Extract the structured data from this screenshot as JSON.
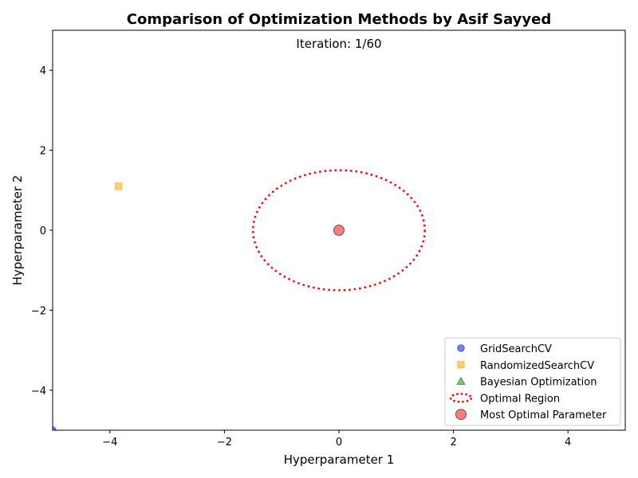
{
  "chart_data": {
    "type": "scatter",
    "title": "Comparison of Optimization Methods by Asif Sayyed",
    "annotation": "Iteration: 1/60",
    "xlabel": "Hyperparameter 1",
    "ylabel": "Hyperparameter 2",
    "xlim": [
      -5,
      5
    ],
    "ylim": [
      -5,
      5
    ],
    "xticks": [
      -4,
      -2,
      0,
      2,
      4
    ],
    "yticks": [
      -4,
      -2,
      0,
      2,
      4
    ],
    "xtick_labels": [
      "−4",
      "−2",
      "0",
      "2",
      "4"
    ],
    "ytick_labels": [
      "−4",
      "−2",
      "0",
      "2",
      "4"
    ],
    "grid": false,
    "legend_position": "lower-right",
    "series": [
      {
        "name": "GridSearchCV",
        "marker": "circle",
        "color": "#0000ff",
        "points": [
          [
            -5,
            -5
          ]
        ]
      },
      {
        "name": "RandomizedSearchCV",
        "marker": "square",
        "color": "#ffa500",
        "points": [
          [
            -3.85,
            1.1
          ]
        ]
      },
      {
        "name": "Bayesian Optimization",
        "marker": "triangle",
        "color": "#008000",
        "points": []
      }
    ],
    "optimal_region": {
      "name": "Optimal Region",
      "center": [
        0,
        0
      ],
      "radius": 1.5,
      "color": "#ff0000",
      "style": "dotted"
    },
    "optimal_point": {
      "name": "Most Optimal Parameter",
      "x": 0,
      "y": 0,
      "color": "#ff0000"
    }
  }
}
